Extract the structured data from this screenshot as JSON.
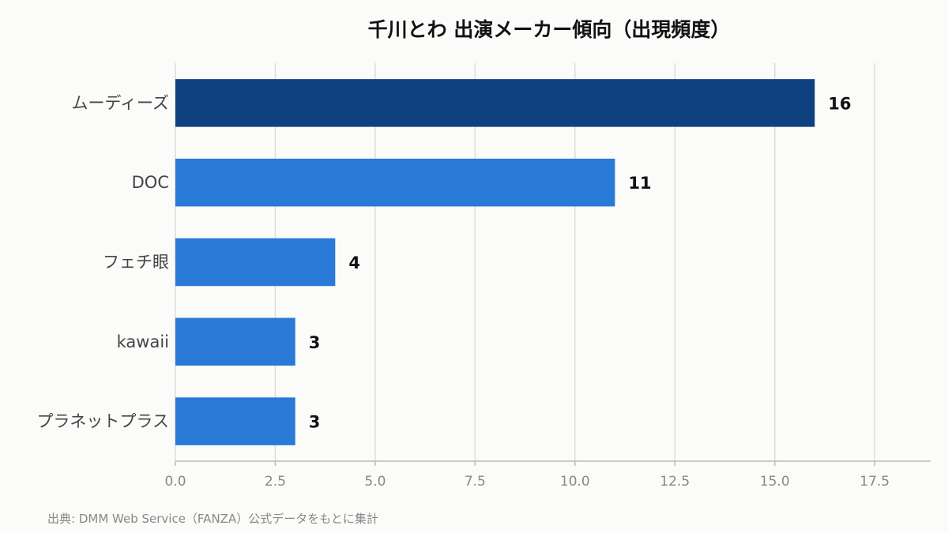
{
  "chart_data": {
    "type": "bar",
    "orientation": "horizontal",
    "title": "千川とわ 出演メーカー傾向（出現頻度）",
    "categories": [
      "ムーディーズ",
      "DOC",
      "フェチ眼",
      "kawaii",
      "プラネットプラス"
    ],
    "values": [
      16,
      11,
      4,
      3,
      3
    ],
    "xlim": [
      0,
      18.9
    ],
    "xticks": [
      "0.0",
      "2.5",
      "5.0",
      "7.5",
      "10.0",
      "12.5",
      "15.0",
      "17.5"
    ],
    "xtick_values": [
      0,
      2.5,
      5,
      7.5,
      10,
      12.5,
      15,
      17.5
    ],
    "grid": "vertical",
    "colors": {
      "highlight": "#0f4181",
      "bar": "#2979d6",
      "grid": "#dddddd",
      "axis": "#bbbbbb"
    }
  },
  "source": "出典: DMM Web Service（FANZA）公式データをもとに集計"
}
